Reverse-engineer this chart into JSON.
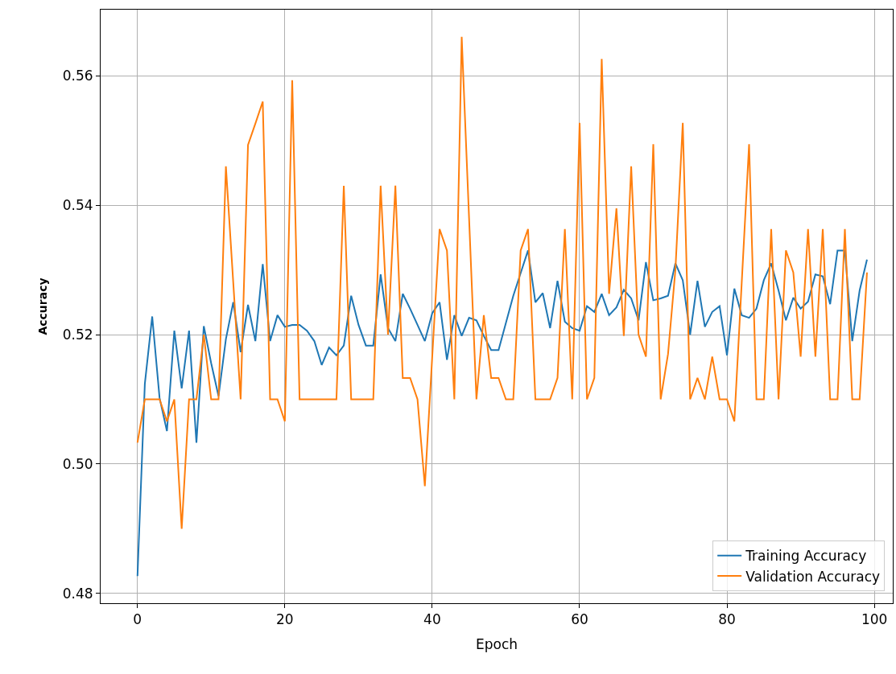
{
  "chart_data": {
    "type": "line",
    "xlabel": "Epoch",
    "ylabel": "Accuracy",
    "x": [
      0,
      1,
      2,
      3,
      4,
      5,
      6,
      7,
      8,
      9,
      10,
      11,
      12,
      13,
      14,
      15,
      16,
      17,
      18,
      19,
      20,
      21,
      22,
      23,
      24,
      25,
      26,
      27,
      28,
      29,
      30,
      31,
      32,
      33,
      34,
      35,
      36,
      37,
      38,
      39,
      40,
      41,
      42,
      43,
      44,
      45,
      46,
      47,
      48,
      49,
      50,
      51,
      52,
      53,
      54,
      55,
      56,
      57,
      58,
      59,
      60,
      61,
      62,
      63,
      64,
      65,
      66,
      67,
      68,
      69,
      70,
      71,
      72,
      73,
      74,
      75,
      76,
      77,
      78,
      79,
      80,
      81,
      82,
      83,
      84,
      85,
      86,
      87,
      88,
      89,
      90,
      91,
      92,
      93,
      94,
      95,
      96,
      97,
      98,
      99
    ],
    "series": [
      {
        "name": "Training Accuracy",
        "color": "#1f77b4",
        "values": [
          0.4827,
          0.5124,
          0.5228,
          0.5102,
          0.5051,
          0.5206,
          0.5117,
          0.5206,
          0.5033,
          0.5213,
          0.5156,
          0.5105,
          0.5193,
          0.525,
          0.5173,
          0.5246,
          0.519,
          0.5309,
          0.519,
          0.523,
          0.5212,
          0.5215,
          0.5215,
          0.5206,
          0.519,
          0.5153,
          0.518,
          0.5168,
          0.5183,
          0.526,
          0.5215,
          0.5183,
          0.5183,
          0.5293,
          0.521,
          0.519,
          0.5263,
          0.524,
          0.5215,
          0.519,
          0.5233,
          0.525,
          0.5161,
          0.523,
          0.5198,
          0.5226,
          0.5222,
          0.5198,
          0.5176,
          0.5176,
          0.5218,
          0.526,
          0.5295,
          0.533,
          0.525,
          0.5264,
          0.521,
          0.5283,
          0.522,
          0.521,
          0.5206,
          0.5244,
          0.5235,
          0.5263,
          0.523,
          0.5242,
          0.5269,
          0.5256,
          0.5222,
          0.5312,
          0.5253,
          0.5256,
          0.526,
          0.531,
          0.5284,
          0.52,
          0.5283,
          0.5212,
          0.5235,
          0.5244,
          0.5168,
          0.5271,
          0.523,
          0.5226,
          0.524,
          0.5284,
          0.531,
          0.5268,
          0.5222,
          0.5257,
          0.524,
          0.5251,
          0.5293,
          0.529,
          0.5247,
          0.533,
          0.533,
          0.519,
          0.5268,
          0.5316
        ]
      },
      {
        "name": "Validation Accuracy",
        "color": "#ff7f0e",
        "values": [
          0.5033,
          0.51,
          0.51,
          0.51,
          0.5066,
          0.51,
          0.49,
          0.51,
          0.51,
          0.52,
          0.51,
          0.51,
          0.546,
          0.528,
          0.51,
          0.5493,
          0.5526,
          0.556,
          0.51,
          0.51,
          0.5066,
          0.5593,
          0.51,
          0.51,
          0.51,
          0.51,
          0.51,
          0.51,
          0.543,
          0.51,
          0.51,
          0.51,
          0.51,
          0.543,
          0.52,
          0.543,
          0.5133,
          0.5133,
          0.51,
          0.4966,
          0.5166,
          0.5363,
          0.533,
          0.51,
          0.566,
          0.538,
          0.51,
          0.523,
          0.5133,
          0.5133,
          0.51,
          0.51,
          0.533,
          0.5363,
          0.51,
          0.51,
          0.51,
          0.5133,
          0.5363,
          0.51,
          0.5527,
          0.51,
          0.5133,
          0.5626,
          0.5263,
          0.5395,
          0.5198,
          0.546,
          0.52,
          0.5166,
          0.5494,
          0.51,
          0.517,
          0.53,
          0.5527,
          0.51,
          0.5133,
          0.51,
          0.5166,
          0.51,
          0.51,
          0.5066,
          0.528,
          0.5494,
          0.51,
          0.51,
          0.5363,
          0.51,
          0.533,
          0.5296,
          0.5166,
          0.5363,
          0.5166,
          0.5363,
          0.51,
          0.51,
          0.5363,
          0.51,
          0.51,
          0.5296
        ]
      }
    ],
    "xlim": [
      -5,
      102.5
    ],
    "xticks": [
      0,
      20,
      40,
      60,
      80,
      100
    ],
    "ylim": [
      0.4785,
      0.5702
    ],
    "yticks": [
      {
        "value": 0.48,
        "label": "0.48"
      },
      {
        "value": 0.5,
        "label": "0.50"
      },
      {
        "value": 0.52,
        "label": "0.52"
      },
      {
        "value": 0.54,
        "label": "0.54"
      },
      {
        "value": 0.56,
        "label": "0.56"
      }
    ],
    "grid": true,
    "legend": "bottom right",
    "marker": "none",
    "line_style": "solid"
  }
}
